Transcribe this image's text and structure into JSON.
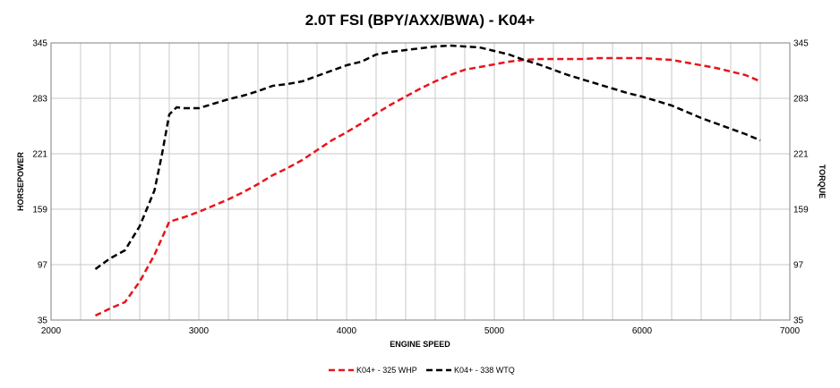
{
  "chart_data": {
    "type": "line",
    "title": "2.0T FSI (BPY/AXX/BWA) - K04+",
    "xlabel": "ENGINE SPEED",
    "ylabel_left": "HORSEPOWER",
    "ylabel_right": "TORQUE",
    "xlim": [
      2000,
      7000
    ],
    "ylim": [
      35,
      345
    ],
    "x_ticks": [
      "2000",
      "3000",
      "4000",
      "5000",
      "6000",
      "7000"
    ],
    "y_ticks": [
      "35",
      "97",
      "159",
      "221",
      "283",
      "345"
    ],
    "grid": true,
    "legend_position": "bottom-center",
    "series": [
      {
        "name": "K04+ - 325 WHP",
        "color": "#e8141b",
        "dash": "dashed",
        "points": [
          [
            2300,
            40
          ],
          [
            2400,
            48
          ],
          [
            2500,
            55
          ],
          [
            2600,
            78
          ],
          [
            2700,
            108
          ],
          [
            2800,
            145
          ],
          [
            2900,
            150
          ],
          [
            3000,
            156
          ],
          [
            3100,
            163
          ],
          [
            3200,
            170
          ],
          [
            3300,
            178
          ],
          [
            3400,
            187
          ],
          [
            3500,
            197
          ],
          [
            3600,
            205
          ],
          [
            3700,
            214
          ],
          [
            3800,
            225
          ],
          [
            3900,
            236
          ],
          [
            4000,
            245
          ],
          [
            4100,
            255
          ],
          [
            4200,
            266
          ],
          [
            4300,
            276
          ],
          [
            4400,
            285
          ],
          [
            4500,
            294
          ],
          [
            4600,
            302
          ],
          [
            4700,
            309
          ],
          [
            4800,
            315
          ],
          [
            4900,
            318
          ],
          [
            5000,
            321
          ],
          [
            5100,
            324
          ],
          [
            5200,
            326
          ],
          [
            5300,
            327
          ],
          [
            5400,
            327
          ],
          [
            5500,
            327
          ],
          [
            5600,
            327
          ],
          [
            5700,
            328
          ],
          [
            5800,
            328
          ],
          [
            5900,
            328
          ],
          [
            6000,
            328
          ],
          [
            6100,
            327
          ],
          [
            6200,
            326
          ],
          [
            6300,
            323
          ],
          [
            6400,
            320
          ],
          [
            6500,
            317
          ],
          [
            6600,
            313
          ],
          [
            6700,
            309
          ],
          [
            6800,
            302
          ]
        ]
      },
      {
        "name": "K04+ - 338 WTQ",
        "color": "#000000",
        "dash": "dashed",
        "points": [
          [
            2300,
            92
          ],
          [
            2400,
            104
          ],
          [
            2500,
            113
          ],
          [
            2600,
            140
          ],
          [
            2700,
            180
          ],
          [
            2750,
            220
          ],
          [
            2800,
            265
          ],
          [
            2850,
            273
          ],
          [
            2900,
            272
          ],
          [
            3000,
            272
          ],
          [
            3100,
            277
          ],
          [
            3200,
            282
          ],
          [
            3300,
            286
          ],
          [
            3400,
            291
          ],
          [
            3500,
            297
          ],
          [
            3600,
            299
          ],
          [
            3700,
            302
          ],
          [
            3800,
            308
          ],
          [
            3900,
            314
          ],
          [
            4000,
            320
          ],
          [
            4100,
            324
          ],
          [
            4200,
            332
          ],
          [
            4300,
            335
          ],
          [
            4400,
            337
          ],
          [
            4500,
            339
          ],
          [
            4600,
            341
          ],
          [
            4700,
            342
          ],
          [
            4800,
            341
          ],
          [
            4900,
            340
          ],
          [
            5000,
            336
          ],
          [
            5100,
            332
          ],
          [
            5200,
            326
          ],
          [
            5300,
            321
          ],
          [
            5400,
            315
          ],
          [
            5500,
            309
          ],
          [
            5600,
            304
          ],
          [
            5700,
            299
          ],
          [
            5800,
            294
          ],
          [
            5900,
            289
          ],
          [
            6000,
            285
          ],
          [
            6100,
            280
          ],
          [
            6200,
            275
          ],
          [
            6300,
            268
          ],
          [
            6400,
            261
          ],
          [
            6500,
            255
          ],
          [
            6600,
            249
          ],
          [
            6700,
            243
          ],
          [
            6800,
            236
          ]
        ]
      }
    ]
  }
}
